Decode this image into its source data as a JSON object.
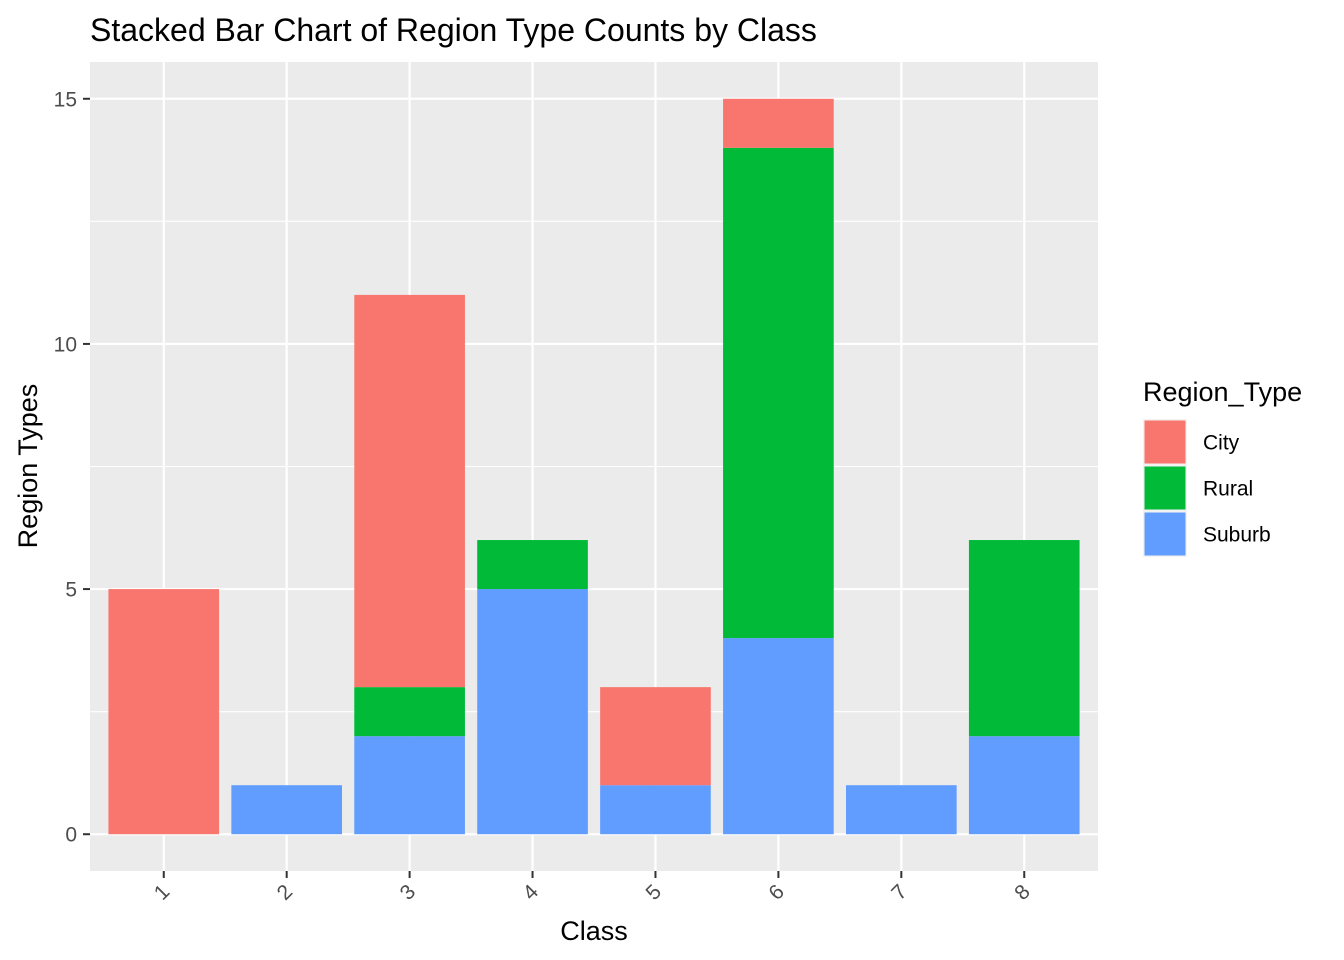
{
  "chart_data": {
    "type": "bar",
    "stacked": true,
    "title": "Stacked Bar Chart of Region Type Counts by Class",
    "xlabel": "Class",
    "ylabel": "Region Types",
    "categories": [
      "1",
      "2",
      "3",
      "4",
      "5",
      "6",
      "7",
      "8"
    ],
    "series": [
      {
        "name": "Suburb",
        "color": "#619CFF",
        "values": [
          0,
          1,
          2,
          5,
          1,
          4,
          1,
          2
        ]
      },
      {
        "name": "Rural",
        "color": "#00BA38",
        "values": [
          0,
          0,
          1,
          1,
          0,
          10,
          0,
          4
        ]
      },
      {
        "name": "City",
        "color": "#F8766D",
        "values": [
          5,
          0,
          8,
          0,
          2,
          1,
          0,
          0
        ]
      }
    ],
    "yticks": [
      0,
      5,
      10,
      15
    ],
    "ylim": [
      -0.75,
      15.75
    ],
    "grid": true,
    "panel_background": "#EBEBEB",
    "legend": {
      "title": "Region_Type",
      "placement": "right",
      "entries": [
        {
          "label": "City",
          "color": "#F8766D"
        },
        {
          "label": "Rural",
          "color": "#00BA38"
        },
        {
          "label": "Suburb",
          "color": "#619CFF"
        }
      ]
    }
  }
}
